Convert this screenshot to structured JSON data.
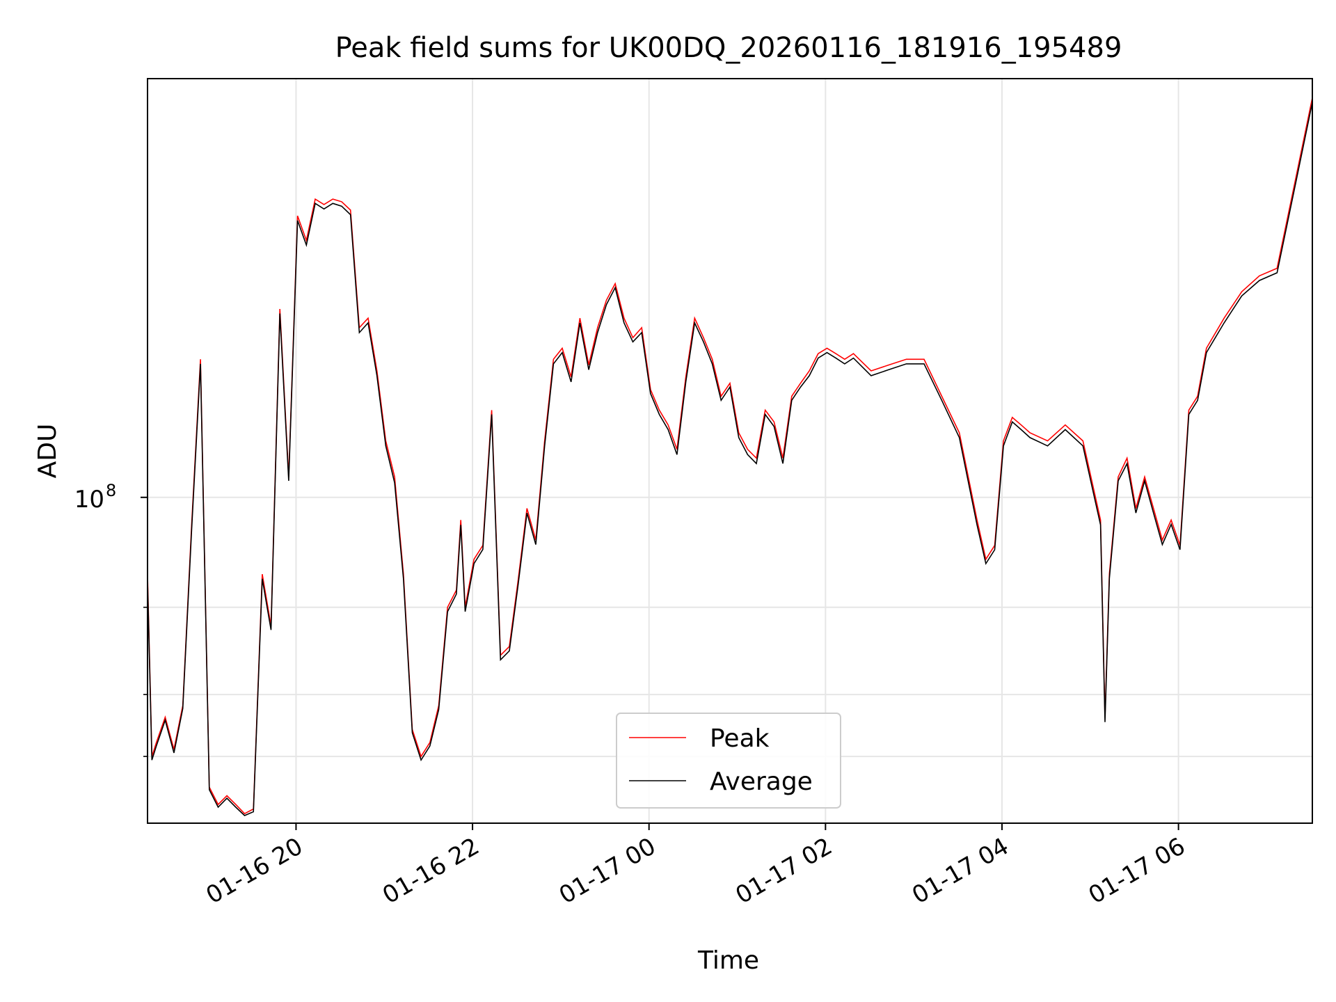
{
  "chart_data": {
    "type": "line",
    "title": "Peak field sums for UK00DQ_20260116_181916_195489",
    "xlabel": "Time",
    "ylabel": "ADU",
    "yscale": "log",
    "x_unit": "hours since 01-16 18:19",
    "xlim": [
      0.0,
      13.2
    ],
    "ylim": [
      22000000,
      700000000
    ],
    "x_ticks": [
      {
        "value": 1.683,
        "label": "01-16 20"
      },
      {
        "value": 3.683,
        "label": "01-16 22"
      },
      {
        "value": 5.683,
        "label": "01-17 00"
      },
      {
        "value": 7.683,
        "label": "01-17 02"
      },
      {
        "value": 9.683,
        "label": "01-17 04"
      },
      {
        "value": 11.683,
        "label": "01-17 06"
      }
    ],
    "y_major_ticks": [
      {
        "value": 100000000,
        "label": "10",
        "exponent": "8"
      }
    ],
    "y_minor_ticks": [
      30000000,
      40000000,
      60000000
    ],
    "grid": true,
    "legend": {
      "position": "bottom-center",
      "entries": [
        "Peak",
        "Average"
      ]
    },
    "colors": {
      "Peak": "#ff0000",
      "Average": "#000000"
    },
    "series": [
      {
        "name": "Peak",
        "x": [
          0.0,
          0.05,
          0.1,
          0.2,
          0.3,
          0.4,
          0.5,
          0.6,
          0.7,
          0.8,
          0.9,
          1.0,
          1.1,
          1.2,
          1.3,
          1.4,
          1.5,
          1.6,
          1.7,
          1.8,
          1.9,
          2.0,
          2.1,
          2.2,
          2.3,
          2.4,
          2.5,
          2.6,
          2.7,
          2.8,
          2.9,
          3.0,
          3.1,
          3.2,
          3.3,
          3.4,
          3.5,
          3.55,
          3.6,
          3.7,
          3.8,
          3.9,
          4.0,
          4.1,
          4.2,
          4.3,
          4.4,
          4.5,
          4.6,
          4.7,
          4.8,
          4.9,
          5.0,
          5.1,
          5.2,
          5.3,
          5.4,
          5.5,
          5.6,
          5.7,
          5.8,
          5.9,
          6.0,
          6.1,
          6.2,
          6.3,
          6.4,
          6.5,
          6.6,
          6.7,
          6.8,
          6.9,
          7.0,
          7.1,
          7.2,
          7.3,
          7.4,
          7.5,
          7.6,
          7.7,
          7.8,
          7.9,
          8.0,
          8.2,
          8.4,
          8.6,
          8.8,
          9.0,
          9.2,
          9.4,
          9.5,
          9.6,
          9.7,
          9.8,
          9.9,
          10.0,
          10.2,
          10.4,
          10.6,
          10.8,
          10.85,
          10.9,
          11.0,
          11.1,
          11.2,
          11.3,
          11.4,
          11.5,
          11.6,
          11.7,
          11.8,
          11.9,
          12.0,
          12.2,
          12.4,
          12.6,
          12.8,
          13.0,
          13.2
        ],
        "y": [
          70000000,
          30000000,
          32000000,
          36000000,
          31000000,
          38000000,
          88000000,
          190000000,
          26000000,
          24000000,
          25000000,
          24000000,
          23000000,
          23500000,
          70000000,
          55000000,
          240000000,
          110000000,
          370000000,
          330000000,
          400000000,
          390000000,
          400000000,
          395000000,
          380000000,
          220000000,
          230000000,
          180000000,
          130000000,
          110000000,
          70000000,
          34000000,
          30000000,
          32000000,
          38000000,
          60000000,
          65000000,
          90000000,
          60000000,
          75000000,
          80000000,
          150000000,
          48000000,
          50000000,
          68000000,
          95000000,
          82000000,
          130000000,
          190000000,
          200000000,
          175000000,
          230000000,
          185000000,
          220000000,
          250000000,
          270000000,
          230000000,
          210000000,
          220000000,
          165000000,
          150000000,
          140000000,
          125000000,
          175000000,
          230000000,
          210000000,
          190000000,
          160000000,
          170000000,
          135000000,
          125000000,
          120000000,
          150000000,
          142000000,
          120000000,
          160000000,
          170000000,
          180000000,
          195000000,
          200000000,
          195000000,
          190000000,
          195000000,
          180000000,
          185000000,
          190000000,
          190000000,
          160000000,
          135000000,
          90000000,
          75000000,
          80000000,
          130000000,
          145000000,
          140000000,
          135000000,
          130000000,
          140000000,
          130000000,
          90000000,
          36000000,
          70000000,
          110000000,
          120000000,
          95000000,
          110000000,
          95000000,
          82000000,
          90000000,
          80000000,
          150000000,
          160000000,
          200000000,
          230000000,
          260000000,
          280000000,
          290000000,
          430000000,
          640000000
        ]
      },
      {
        "name": "Average",
        "x": [
          0.0,
          0.05,
          0.1,
          0.2,
          0.3,
          0.4,
          0.5,
          0.6,
          0.7,
          0.8,
          0.9,
          1.0,
          1.1,
          1.2,
          1.3,
          1.4,
          1.5,
          1.6,
          1.7,
          1.8,
          1.9,
          2.0,
          2.1,
          2.2,
          2.3,
          2.4,
          2.5,
          2.6,
          2.7,
          2.8,
          2.9,
          3.0,
          3.1,
          3.2,
          3.3,
          3.4,
          3.5,
          3.55,
          3.6,
          3.7,
          3.8,
          3.9,
          4.0,
          4.1,
          4.2,
          4.3,
          4.4,
          4.5,
          4.6,
          4.7,
          4.8,
          4.9,
          5.0,
          5.1,
          5.2,
          5.3,
          5.4,
          5.5,
          5.6,
          5.7,
          5.8,
          5.9,
          6.0,
          6.1,
          6.2,
          6.3,
          6.4,
          6.5,
          6.6,
          6.7,
          6.8,
          6.9,
          7.0,
          7.1,
          7.2,
          7.3,
          7.4,
          7.5,
          7.6,
          7.7,
          7.8,
          7.9,
          8.0,
          8.2,
          8.4,
          8.6,
          8.8,
          9.0,
          9.2,
          9.4,
          9.5,
          9.6,
          9.7,
          9.8,
          9.9,
          10.0,
          10.2,
          10.4,
          10.6,
          10.8,
          10.85,
          10.9,
          11.0,
          11.1,
          11.2,
          11.3,
          11.4,
          11.5,
          11.6,
          11.7,
          11.8,
          11.9,
          12.0,
          12.2,
          12.4,
          12.6,
          12.8,
          13.0,
          13.2
        ],
        "y": [
          68000000,
          29500000,
          31500000,
          35500000,
          30500000,
          37500000,
          86000000,
          186000000,
          25700000,
          23700000,
          24700000,
          23700000,
          22800000,
          23200000,
          68500000,
          54000000,
          235000000,
          108000000,
          362000000,
          323000000,
          392000000,
          382000000,
          392000000,
          387000000,
          372000000,
          215000000,
          225000000,
          176000000,
          127000000,
          107000000,
          68500000,
          33500000,
          29500000,
          31500000,
          37300000,
          58800000,
          63800000,
          88000000,
          58800000,
          73500000,
          78500000,
          147000000,
          47000000,
          49000000,
          66600000,
          93000000,
          80300000,
          127000000,
          186000000,
          196000000,
          171000000,
          225000000,
          181000000,
          215000000,
          245000000,
          265000000,
          225000000,
          206000000,
          215000000,
          162000000,
          147000000,
          137000000,
          122000000,
          171000000,
          225000000,
          206000000,
          186000000,
          157000000,
          167000000,
          132000000,
          122000000,
          117000000,
          147000000,
          139000000,
          117000000,
          157000000,
          167000000,
          176000000,
          191000000,
          196000000,
          191000000,
          186000000,
          191000000,
          176000000,
          181000000,
          186000000,
          186000000,
          157000000,
          132000000,
          88000000,
          73500000,
          78400000,
          127000000,
          142000000,
          137000000,
          132000000,
          127000000,
          137000000,
          127000000,
          88000000,
          35200000,
          68600000,
          108000000,
          117000000,
          93000000,
          108000000,
          93000000,
          80300000,
          88200000,
          78400000,
          147000000,
          157000000,
          196000000,
          225000000,
          255000000,
          274000000,
          284000000,
          421000000,
          627000000
        ]
      }
    ]
  }
}
